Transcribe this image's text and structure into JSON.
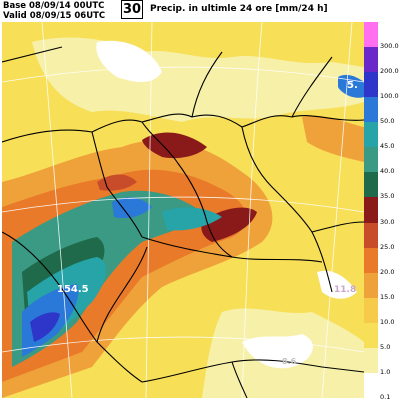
{
  "header": {
    "base": "Base 08/09/14 00UTC",
    "valid": "Valid 08/09/15 06UTC",
    "forecast_hour": "30",
    "title": "Precip. in ultimle 24 ore [mm/24 h]"
  },
  "map_labels": {
    "max_west": "154.5",
    "east_high": "5.",
    "east_low": "11.8",
    "south": "8.6"
  },
  "legend": {
    "entries": [
      {
        "label": "300.0",
        "color": "#ff6ff0"
      },
      {
        "label": "200.0",
        "color": "#6a28c8"
      },
      {
        "label": "100.0",
        "color": "#2d36c8"
      },
      {
        "label": "50.0",
        "color": "#2a78d8"
      },
      {
        "label": "45.0",
        "color": "#26a4a8"
      },
      {
        "label": "40.0",
        "color": "#3a9a84"
      },
      {
        "label": "35.0",
        "color": "#1e6a4a"
      },
      {
        "label": "30.0",
        "color": "#8a1a1a"
      },
      {
        "label": "25.0",
        "color": "#c84b2a"
      },
      {
        "label": "20.0",
        "color": "#e87a2a"
      },
      {
        "label": "15.0",
        "color": "#f0a23a"
      },
      {
        "label": "10.0",
        "color": "#f6cb4a"
      },
      {
        "label": "5.0",
        "color": "#f7df57"
      },
      {
        "label": "1.0",
        "color": "#f7f0a8"
      },
      {
        "label": "0.1",
        "color": "#ffffff"
      }
    ]
  },
  "colors": {
    "background": "#f7df57",
    "border": "#000000",
    "grid": "#ffffff"
  }
}
